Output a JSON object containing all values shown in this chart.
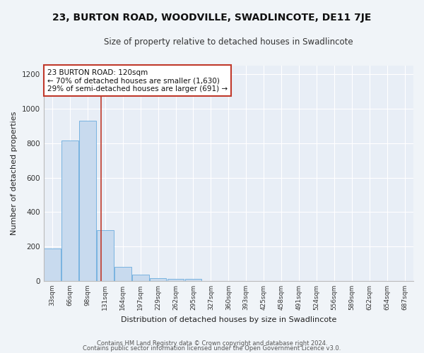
{
  "title": "23, BURTON ROAD, WOODVILLE, SWADLINCOTE, DE11 7JE",
  "subtitle": "Size of property relative to detached houses in Swadlincote",
  "xlabel": "Distribution of detached houses by size in Swadlincote",
  "ylabel": "Number of detached properties",
  "bar_labels": [
    "33sqm",
    "66sqm",
    "98sqm",
    "131sqm",
    "164sqm",
    "197sqm",
    "229sqm",
    "262sqm",
    "295sqm",
    "327sqm",
    "360sqm",
    "393sqm",
    "425sqm",
    "458sqm",
    "491sqm",
    "524sqm",
    "556sqm",
    "589sqm",
    "622sqm",
    "654sqm",
    "687sqm"
  ],
  "bar_values": [
    190,
    815,
    930,
    295,
    82,
    38,
    18,
    13,
    10,
    0,
    0,
    0,
    0,
    0,
    0,
    0,
    0,
    0,
    0,
    0,
    0
  ],
  "bar_color": "#c8daee",
  "bar_edge_color": "#6aabdd",
  "fig_bg_color": "#f0f4f8",
  "axes_bg_color": "#e8eef6",
  "grid_color": "#ffffff",
  "vline_x": 2.75,
  "vline_color": "#c0392b",
  "annotation_line1": "23 BURTON ROAD: 120sqm",
  "annotation_line2": "← 70% of detached houses are smaller (1,630)",
  "annotation_line3": "29% of semi-detached houses are larger (691) →",
  "annotation_box_edge": "#c0392b",
  "ylim": [
    0,
    1250
  ],
  "yticks": [
    0,
    200,
    400,
    600,
    800,
    1000,
    1200
  ],
  "footer_line1": "Contains HM Land Registry data © Crown copyright and database right 2024.",
  "footer_line2": "Contains public sector information licensed under the Open Government Licence v3.0."
}
